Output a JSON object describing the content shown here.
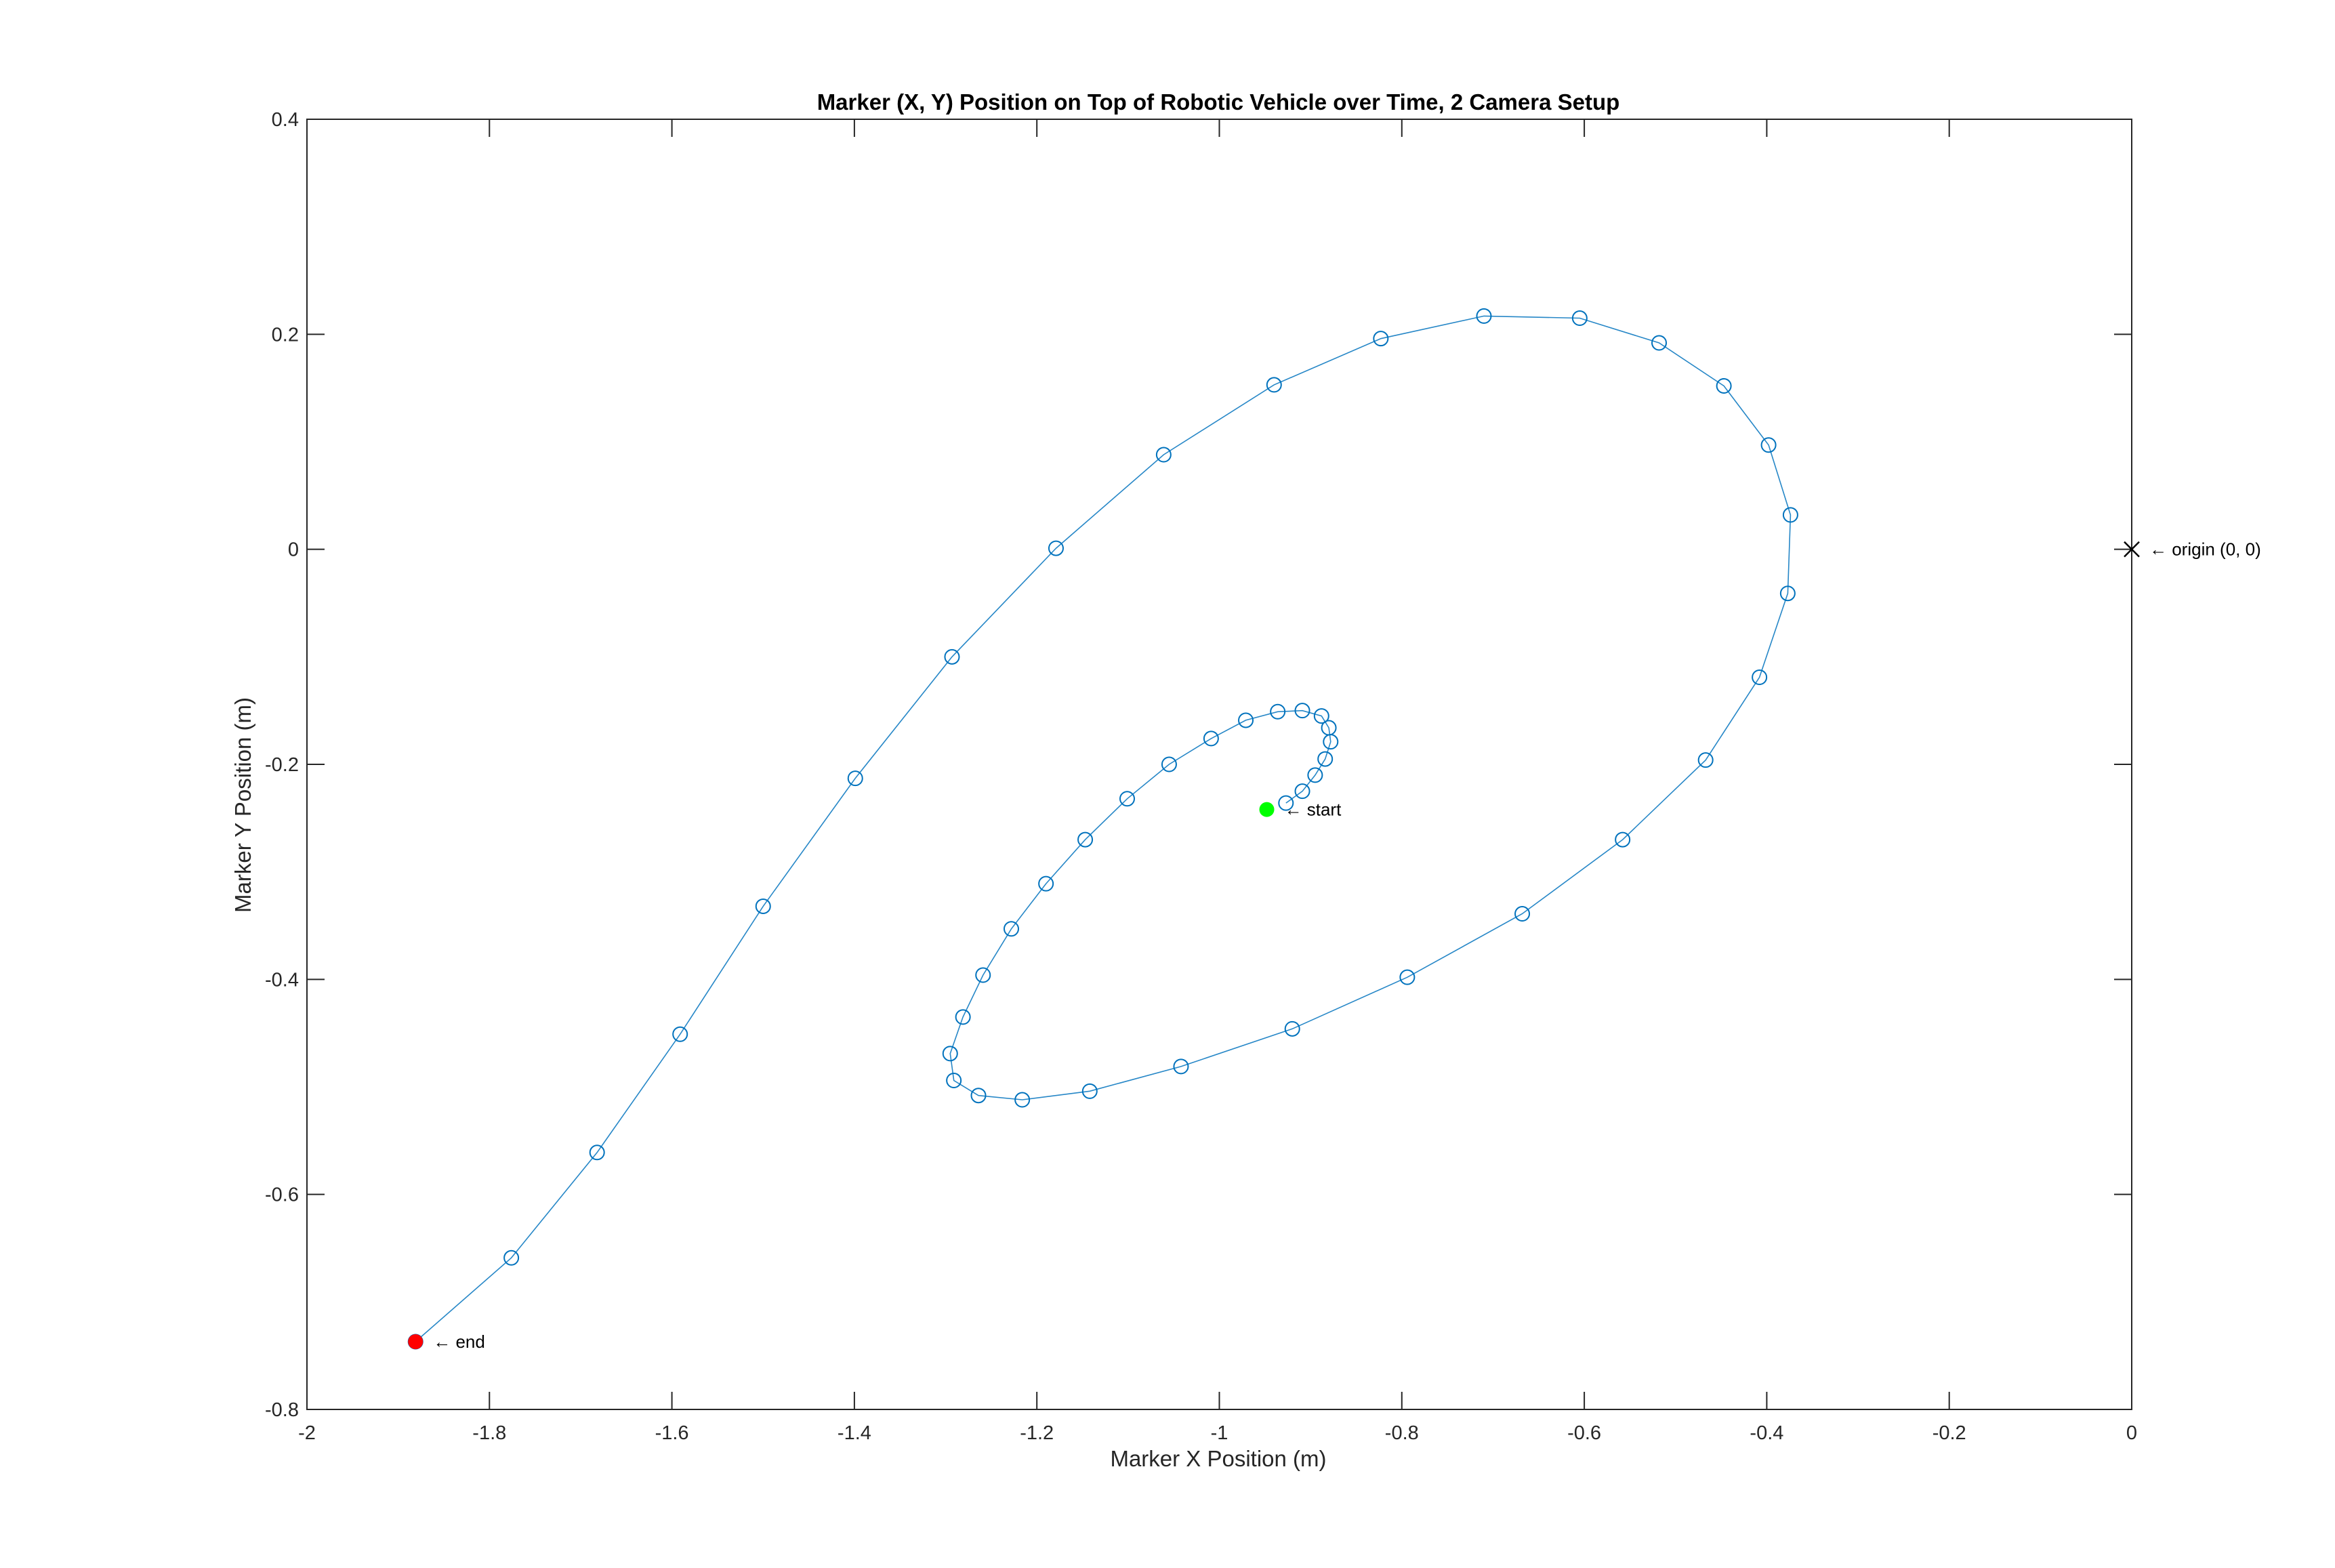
{
  "chart_data": {
    "type": "scatter",
    "title": "Marker (X, Y) Position on Top of Robotic Vehicle over Time, 2 Camera Setup",
    "xlabel": "Marker X Position (m)",
    "ylabel": "Marker Y Position (m)",
    "xlim": [
      -2,
      0
    ],
    "ylim": [
      -0.8,
      0.4
    ],
    "xticks": [
      -2,
      -1.8,
      -1.6,
      -1.4,
      -1.2,
      -1,
      -0.8,
      -0.6,
      -0.4,
      -0.2,
      0
    ],
    "yticks": [
      -0.8,
      -0.6,
      -0.4,
      -0.2,
      0,
      0.2,
      0.4
    ],
    "xtick_labels": [
      "-2",
      "-1.8",
      "-1.6",
      "-1.4",
      "-1.2",
      "-1",
      "-0.8",
      "-0.6",
      "-0.4",
      "-0.2",
      "0"
    ],
    "ytick_labels": [
      "-0.8",
      "-0.6",
      "-0.4",
      "-0.2",
      "0",
      "0.2",
      "0.4"
    ],
    "grid": false,
    "box": true,
    "series": [
      {
        "marker": "open-circle",
        "line": "solid",
        "color": "#0072BD",
        "points": [
          [
            -0.927,
            -0.236
          ],
          [
            -0.909,
            -0.225
          ],
          [
            -0.895,
            -0.21
          ],
          [
            -0.884,
            -0.195
          ],
          [
            -0.878,
            -0.179
          ],
          [
            -0.88,
            -0.166
          ],
          [
            -0.888,
            -0.155
          ],
          [
            -0.909,
            -0.15
          ],
          [
            -0.936,
            -0.151
          ],
          [
            -0.971,
            -0.159
          ],
          [
            -1.009,
            -0.176
          ],
          [
            -1.055,
            -0.2
          ],
          [
            -1.101,
            -0.232
          ],
          [
            -1.147,
            -0.27
          ],
          [
            -1.19,
            -0.311
          ],
          [
            -1.228,
            -0.353
          ],
          [
            -1.259,
            -0.396
          ],
          [
            -1.281,
            -0.435
          ],
          [
            -1.295,
            -0.469
          ],
          [
            -1.291,
            -0.494
          ],
          [
            -1.264,
            -0.508
          ],
          [
            -1.216,
            -0.512
          ],
          [
            -1.142,
            -0.504
          ],
          [
            -1.042,
            -0.481
          ],
          [
            -0.92,
            -0.446
          ],
          [
            -0.794,
            -0.398
          ],
          [
            -0.668,
            -0.339
          ],
          [
            -0.558,
            -0.27
          ],
          [
            -0.467,
            -0.196
          ],
          [
            -0.408,
            -0.119
          ],
          [
            -0.377,
            -0.041
          ],
          [
            -0.374,
            0.032
          ],
          [
            -0.398,
            0.097
          ],
          [
            -0.447,
            0.152
          ],
          [
            -0.518,
            0.192
          ],
          [
            -0.605,
            0.215
          ],
          [
            -0.71,
            0.217
          ],
          [
            -0.823,
            0.196
          ],
          [
            -0.94,
            0.153
          ],
          [
            -1.061,
            0.088
          ],
          [
            -1.179,
            0.001
          ],
          [
            -1.293,
            -0.1
          ],
          [
            -1.399,
            -0.213
          ],
          [
            -1.5,
            -0.332
          ],
          [
            -1.591,
            -0.451
          ],
          [
            -1.682,
            -0.561
          ],
          [
            -1.776,
            -0.659
          ],
          [
            -1.881,
            -0.737
          ]
        ]
      }
    ],
    "annotations": [
      {
        "text": "← start",
        "x": -0.948,
        "y": -0.242,
        "marker": "filled-circle",
        "color": "#00FF00"
      },
      {
        "text": "← end",
        "x": -1.881,
        "y": -0.737,
        "marker": "filled-circle",
        "color": "#FF0000"
      },
      {
        "text": "← origin (0, 0)",
        "x": 0,
        "y": 0,
        "marker": "x",
        "color": "#000000"
      }
    ]
  }
}
